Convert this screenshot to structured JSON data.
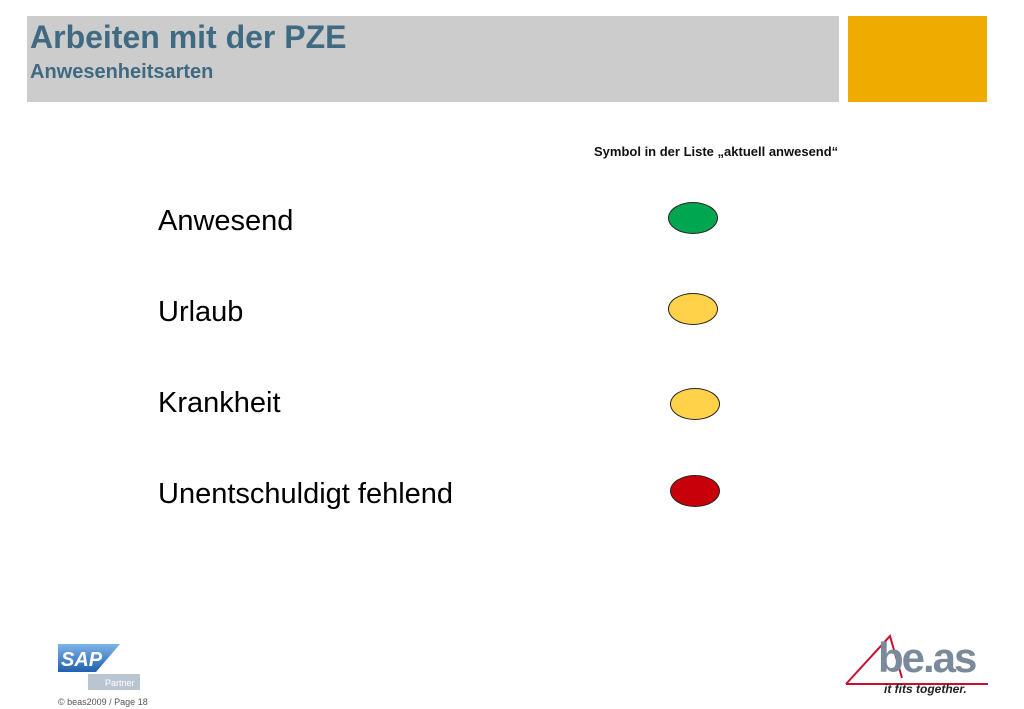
{
  "header": {
    "title": "Arbeiten mit der PZE",
    "subtitle": "Anwesenheitsarten",
    "accent_color": "#f0ab00",
    "bar_color": "#cccccc"
  },
  "column_header": "Symbol in der Liste „aktuell anwesend“",
  "attendance_types": [
    {
      "label": "Anwesend",
      "color": "#00a650"
    },
    {
      "label": "Urlaub",
      "color": "#ffd24a"
    },
    {
      "label": "Krankheit",
      "color": "#ffd24a"
    },
    {
      "label": "Unentschuldigt fehlend",
      "color": "#c8000a"
    }
  ],
  "footer": {
    "sap_logo_text": "SAP",
    "sap_partner_text": "Partner",
    "copyright": "© beas2009 / Page 18",
    "beas_logo_text": "be.as",
    "beas_tagline": "it fits together."
  }
}
